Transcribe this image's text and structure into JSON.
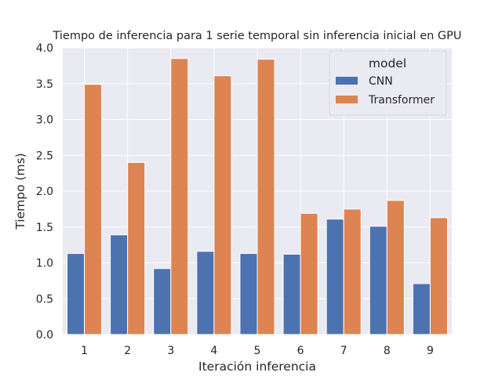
{
  "chart_data": {
    "type": "bar",
    "title": "Tiempo de inferencia para 1 serie temporal sin inferencia inicial en GPU",
    "xlabel": "Iteración inferencia",
    "ylabel": "Tiempo (ms)",
    "categories": [
      "1",
      "2",
      "3",
      "4",
      "5",
      "6",
      "7",
      "8",
      "9"
    ],
    "ylim": [
      0,
      4.0
    ],
    "yticks": [
      "0.0",
      "0.5",
      "1.0",
      "1.5",
      "2.0",
      "2.5",
      "3.0",
      "3.5",
      "4.0"
    ],
    "grid": true,
    "legend": {
      "title": "model",
      "placement": "top-right"
    },
    "series": [
      {
        "name": "CNN",
        "color": "#4c72b0",
        "values": [
          1.13,
          1.39,
          0.92,
          1.16,
          1.13,
          1.12,
          1.61,
          1.51,
          0.71
        ]
      },
      {
        "name": "Transformer",
        "color": "#dd8452",
        "values": [
          3.49,
          2.4,
          3.85,
          3.61,
          3.84,
          1.69,
          1.75,
          1.87,
          1.63
        ]
      }
    ]
  }
}
